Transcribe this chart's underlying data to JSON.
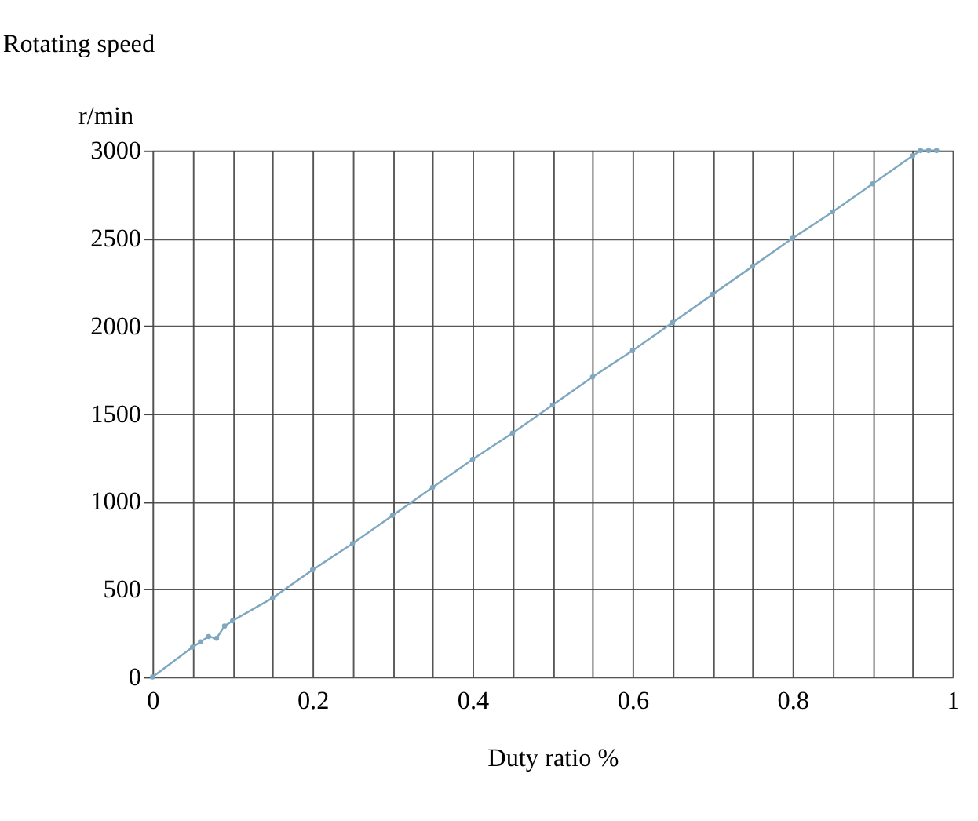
{
  "chart_data": {
    "type": "line",
    "title": "Rotating speed",
    "xlabel": "Duty ratio %",
    "ylabel": "r/min",
    "x": [
      0,
      0.05,
      0.06,
      0.07,
      0.08,
      0.09,
      0.1,
      0.15,
      0.2,
      0.25,
      0.3,
      0.35,
      0.4,
      0.45,
      0.5,
      0.55,
      0.6,
      0.65,
      0.7,
      0.75,
      0.8,
      0.85,
      0.9,
      0.95,
      0.96,
      0.97,
      0.98
    ],
    "series": [
      {
        "color": "#7fa8c0",
        "values": [
          0,
          170,
          200,
          230,
          220,
          290,
          320,
          450,
          610,
          760,
          920,
          1080,
          1240,
          1390,
          1550,
          1710,
          1860,
          2020,
          2180,
          2340,
          2500,
          2650,
          2810,
          2970,
          3000,
          3000,
          3000
        ]
      }
    ],
    "xlim": [
      0,
      1
    ],
    "xticks": [
      0,
      {
        "value": 0.05,
        "label": null
      },
      {
        "value": 0.1,
        "label": null
      },
      {
        "value": 0.15,
        "label": null
      },
      0.2,
      {
        "value": 0.25,
        "label": null
      },
      {
        "value": 0.3,
        "label": null
      },
      {
        "value": 0.35,
        "label": null
      },
      0.4,
      {
        "value": 0.45,
        "label": null
      },
      {
        "value": 0.5,
        "label": null
      },
      {
        "value": 0.55,
        "label": null
      },
      0.6,
      {
        "value": 0.65,
        "label": null
      },
      {
        "value": 0.7,
        "label": null
      },
      {
        "value": 0.75,
        "label": null
      },
      0.8,
      {
        "value": 0.85,
        "label": null
      },
      {
        "value": 0.9,
        "label": null
      },
      {
        "value": 0.95,
        "label": null
      },
      1
    ],
    "ylim": [
      0,
      3000
    ],
    "yticks": [
      0,
      500,
      1000,
      1500,
      2000,
      2500,
      3000
    ],
    "grid": true,
    "marker": "circle",
    "line_style": "solid"
  }
}
